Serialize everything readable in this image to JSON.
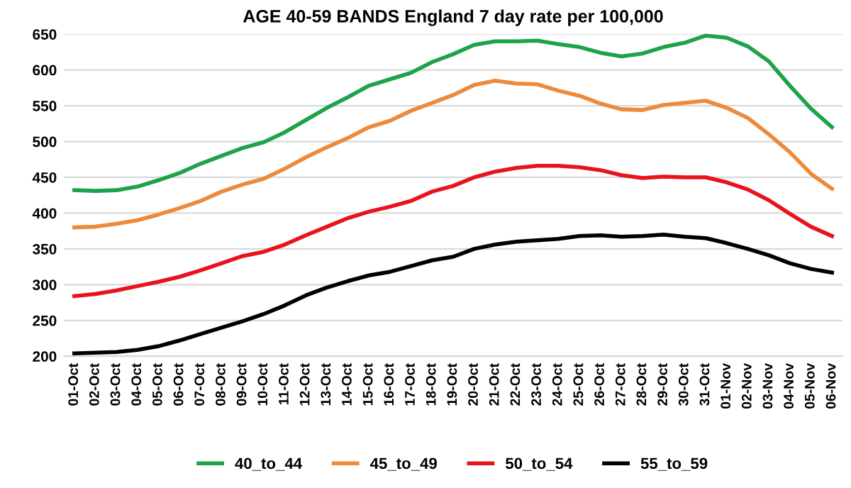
{
  "chart_data": {
    "type": "line",
    "title": "AGE 40-59 BANDS England 7 day rate per 100,000",
    "categories": [
      "01-Oct",
      "02-Oct",
      "03-Oct",
      "04-Oct",
      "05-Oct",
      "06-Oct",
      "07-Oct",
      "08-Oct",
      "09-Oct",
      "10-Oct",
      "11-Oct",
      "12-Oct",
      "13-Oct",
      "14-Oct",
      "15-Oct",
      "16-Oct",
      "17-Oct",
      "18-Oct",
      "19-Oct",
      "20-Oct",
      "21-Oct",
      "22-Oct",
      "23-Oct",
      "24-Oct",
      "25-Oct",
      "26-Oct",
      "27-Oct",
      "28-Oct",
      "29-Oct",
      "30-Oct",
      "31-Oct",
      "01-Nov",
      "02-Nov",
      "03-Nov",
      "04-Nov",
      "05-Nov",
      "06-Nov"
    ],
    "series": [
      {
        "name": "40_to_44",
        "color": "#1fa34a",
        "values": [
          432,
          431,
          432,
          437,
          446,
          456,
          469,
          480,
          491,
          499,
          513,
          530,
          547,
          562,
          578,
          587,
          596,
          611,
          622,
          635,
          640,
          640,
          641,
          636,
          632,
          624,
          619,
          623,
          632,
          638,
          648,
          645,
          633,
          612,
          578,
          546,
          520
        ]
      },
      {
        "name": "45_to_49",
        "color": "#ed8a3c",
        "values": [
          380,
          381,
          385,
          390,
          398,
          407,
          417,
          430,
          440,
          448,
          462,
          478,
          492,
          505,
          520,
          529,
          543,
          554,
          565,
          579,
          585,
          581,
          580,
          571,
          564,
          553,
          545,
          544,
          551,
          554,
          557,
          547,
          533,
          510,
          485,
          455,
          434
        ]
      },
      {
        "name": "50_to_54",
        "color": "#e8141c",
        "values": [
          284,
          287,
          292,
          298,
          304,
          311,
          320,
          330,
          340,
          346,
          356,
          369,
          381,
          393,
          402,
          409,
          417,
          430,
          438,
          450,
          458,
          463,
          466,
          466,
          464,
          460,
          453,
          449,
          451,
          450,
          450,
          443,
          433,
          418,
          399,
          381,
          368
        ]
      },
      {
        "name": "55_to_59",
        "color": "#000000",
        "values": [
          204,
          205,
          206,
          209,
          214,
          222,
          231,
          240,
          249,
          259,
          271,
          285,
          296,
          305,
          313,
          318,
          326,
          334,
          339,
          350,
          356,
          360,
          362,
          364,
          368,
          369,
          367,
          368,
          370,
          367,
          365,
          358,
          350,
          341,
          330,
          322,
          317
        ]
      }
    ],
    "ylim": [
      200,
      650
    ],
    "yticks": [
      200,
      250,
      300,
      350,
      400,
      450,
      500,
      550,
      600,
      650
    ],
    "grid": "y",
    "legend": "bottom",
    "marker": "none",
    "line_style": "solid"
  }
}
